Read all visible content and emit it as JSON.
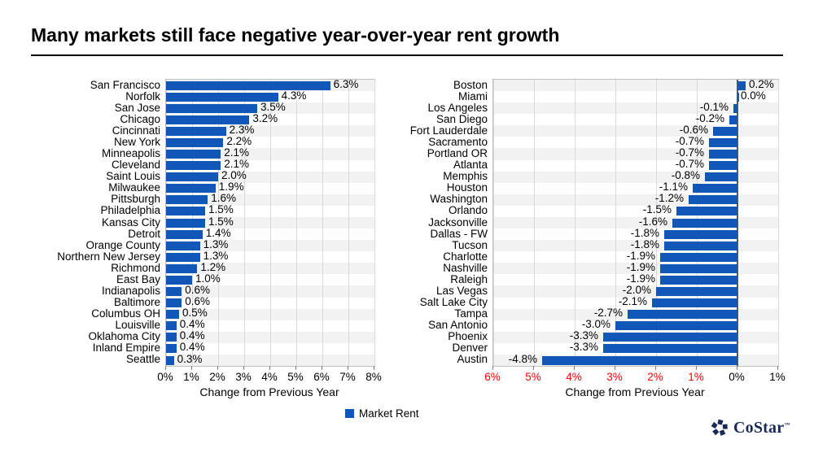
{
  "title": "Many markets still face negative year-over-year rent growth",
  "colors": {
    "bar": "#1057b8",
    "negative_tick": "#ff0000",
    "stripe": "#f2f2f2",
    "gridline": "#d9d9d9",
    "logo_navy": "#1b2a55"
  },
  "legend": {
    "label": "Market Rent"
  },
  "logo": {
    "text": "CoStar",
    "tm": "™"
  },
  "chart_data": [
    {
      "type": "bar",
      "orientation": "horizontal",
      "title": "",
      "xlabel": "Change from Previous Year",
      "ylabel": "",
      "xlim": [
        0,
        8
      ],
      "grid": true,
      "legend_position": "bottom",
      "xticks": [
        {
          "label": "0%",
          "red": false
        },
        {
          "label": "1%",
          "red": false
        },
        {
          "label": "2%",
          "red": false
        },
        {
          "label": "3%",
          "red": false
        },
        {
          "label": "4%",
          "red": false
        },
        {
          "label": "5%",
          "red": false
        },
        {
          "label": "6%",
          "red": false
        },
        {
          "label": "7%",
          "red": false
        },
        {
          "label": "8%",
          "red": false
        }
      ],
      "categories": [
        "San Francisco",
        "Norfolk",
        "San Jose",
        "Chicago",
        "Cincinnati",
        "New York",
        "Minneapolis",
        "Cleveland",
        "Saint Louis",
        "Milwaukee",
        "Pittsburgh",
        "Philadelphia",
        "Kansas City",
        "Detroit",
        "Orange County",
        "Northern New Jersey",
        "Richmond",
        "East Bay",
        "Indianapolis",
        "Baltimore",
        "Columbus OH",
        "Louisville",
        "Oklahoma City",
        "Inland Empire",
        "Seattle"
      ],
      "values": [
        6.3,
        4.3,
        3.5,
        3.2,
        2.3,
        2.2,
        2.1,
        2.1,
        2.0,
        1.9,
        1.6,
        1.5,
        1.5,
        1.4,
        1.3,
        1.3,
        1.2,
        1.0,
        0.6,
        0.6,
        0.5,
        0.4,
        0.4,
        0.4,
        0.3
      ],
      "data_labels": [
        "6.3%",
        "4.3%",
        "3.5%",
        "3.2%",
        "2.3%",
        "2.2%",
        "2.1%",
        "2.1%",
        "2.0%",
        "1.9%",
        "1.6%",
        "1.5%",
        "1.5%",
        "1.4%",
        "1.3%",
        "1.3%",
        "1.2%",
        "1.0%",
        "0.6%",
        "0.6%",
        "0.5%",
        "0.4%",
        "0.4%",
        "0.4%",
        "0.3%"
      ],
      "series_name": "Market Rent"
    },
    {
      "type": "bar",
      "orientation": "horizontal",
      "title": "",
      "xlabel": "Change from Previous Year",
      "ylabel": "",
      "xlim": [
        -6,
        1
      ],
      "grid": true,
      "legend_position": "none",
      "xticks": [
        {
          "label": "6%",
          "red": true
        },
        {
          "label": "5%",
          "red": true
        },
        {
          "label": "4%",
          "red": true
        },
        {
          "label": "3%",
          "red": true
        },
        {
          "label": "2%",
          "red": true
        },
        {
          "label": "1%",
          "red": true
        },
        {
          "label": "0%",
          "red": false
        },
        {
          "label": "1%",
          "red": false
        }
      ],
      "categories": [
        "Boston",
        "Miami",
        "Los Angeles",
        "San Diego",
        "Fort Lauderdale",
        "Sacramento",
        "Portland OR",
        "Atlanta",
        "Memphis",
        "Houston",
        "Washington",
        "Orlando",
        "Jacksonville",
        "Dallas - FW",
        "Tucson",
        "Charlotte",
        "Nashville",
        "Raleigh",
        "Las Vegas",
        "Salt Lake City",
        "Tampa",
        "San Antonio",
        "Phoenix",
        "Denver",
        "Austin"
      ],
      "values": [
        0.2,
        0.0,
        -0.1,
        -0.2,
        -0.6,
        -0.7,
        -0.7,
        -0.7,
        -0.8,
        -1.1,
        -1.2,
        -1.5,
        -1.6,
        -1.8,
        -1.8,
        -1.9,
        -1.9,
        -1.9,
        -2.0,
        -2.1,
        -2.7,
        -3.0,
        -3.3,
        -3.3,
        -4.8
      ],
      "data_labels": [
        "0.2%",
        "0.0%",
        "-0.1%",
        "-0.2%",
        "-0.6%",
        "-0.7%",
        "-0.7%",
        "-0.7%",
        "-0.8%",
        "-1.1%",
        "-1.2%",
        "-1.5%",
        "-1.6%",
        "-1.8%",
        "-1.8%",
        "-1.9%",
        "-1.9%",
        "-1.9%",
        "-2.0%",
        "-2.1%",
        "-2.7%",
        "-3.0%",
        "-3.3%",
        "-3.3%",
        "-4.8%"
      ],
      "series_name": "Market Rent"
    }
  ]
}
